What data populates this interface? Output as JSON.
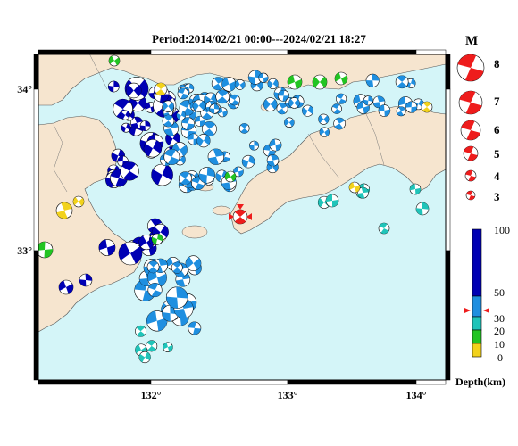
{
  "title": "Period:2014/02/21 00:00---2024/02/21 18:27",
  "axes": {
    "lon_ticks": [
      "132°",
      "133°",
      "134°"
    ],
    "lat_ticks": [
      "34°",
      "33°"
    ]
  },
  "legend": {
    "magnitude_title": "M",
    "magnitudes": [
      "8",
      "7",
      "6",
      "5",
      "4",
      "3"
    ],
    "depth_ticks": [
      "100",
      "50",
      "30",
      "20",
      "10",
      "0"
    ],
    "depth_label": "Depth(km)"
  },
  "colors": {
    "land": "#f6e5cf",
    "sea": "#d4f5f8",
    "deep": "#0000b4",
    "mid": "#1f8fe0",
    "shallow": "#1fc4b9",
    "green": "#22c422",
    "yellow": "#f2d21c",
    "red": "#ee1c1c"
  }
}
